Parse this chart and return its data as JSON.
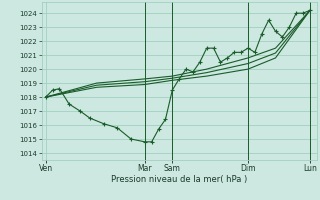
{
  "background_color": "#cce8e0",
  "grid_color": "#99ccbb",
  "line_color": "#1a5c2a",
  "xlabel": "Pression niveau de la mer( hPa )",
  "ylim": [
    1013.5,
    1024.8
  ],
  "yticks": [
    1014,
    1015,
    1016,
    1017,
    1018,
    1019,
    1020,
    1021,
    1022,
    1023,
    1024
  ],
  "xlim": [
    0,
    20
  ],
  "day_labels": [
    "Ven",
    "Mar",
    "Sam",
    "Dim",
    "Lun"
  ],
  "day_positions": [
    0.3,
    7.5,
    9.5,
    15.0,
    19.5
  ],
  "vline_positions": [
    7.5,
    9.5,
    15.0,
    19.5
  ],
  "main_line": [
    [
      0.3,
      1018.0
    ],
    [
      0.8,
      1018.5
    ],
    [
      1.3,
      1018.6
    ],
    [
      2.0,
      1017.5
    ],
    [
      2.8,
      1017.0
    ],
    [
      3.5,
      1016.5
    ],
    [
      4.5,
      1016.1
    ],
    [
      5.5,
      1015.8
    ],
    [
      6.5,
      1015.0
    ],
    [
      7.5,
      1014.8
    ],
    [
      8.0,
      1014.8
    ],
    [
      8.5,
      1015.7
    ],
    [
      9.0,
      1016.4
    ],
    [
      9.5,
      1018.5
    ],
    [
      10.0,
      1019.3
    ],
    [
      10.5,
      1020.0
    ],
    [
      11.0,
      1019.8
    ],
    [
      11.5,
      1020.5
    ],
    [
      12.0,
      1021.5
    ],
    [
      12.5,
      1021.5
    ],
    [
      13.0,
      1020.5
    ],
    [
      13.5,
      1020.8
    ],
    [
      14.0,
      1021.2
    ],
    [
      14.5,
      1021.2
    ],
    [
      15.0,
      1021.5
    ],
    [
      15.5,
      1021.2
    ],
    [
      16.0,
      1022.5
    ],
    [
      16.5,
      1023.5
    ],
    [
      17.0,
      1022.7
    ],
    [
      17.5,
      1022.3
    ],
    [
      18.0,
      1023.0
    ],
    [
      18.5,
      1024.0
    ],
    [
      19.0,
      1024.0
    ],
    [
      19.5,
      1024.2
    ]
  ],
  "upper_line": [
    [
      0.3,
      1018.0
    ],
    [
      4.0,
      1019.0
    ],
    [
      7.5,
      1019.3
    ],
    [
      9.5,
      1019.5
    ],
    [
      12.0,
      1020.0
    ],
    [
      15.0,
      1020.8
    ],
    [
      17.0,
      1021.5
    ],
    [
      19.5,
      1024.2
    ]
  ],
  "lower_line": [
    [
      0.3,
      1018.0
    ],
    [
      4.0,
      1018.7
    ],
    [
      7.5,
      1018.9
    ],
    [
      9.5,
      1019.2
    ],
    [
      12.0,
      1019.5
    ],
    [
      15.0,
      1020.0
    ],
    [
      17.0,
      1020.8
    ],
    [
      19.5,
      1024.2
    ]
  ],
  "mid_line1": [
    [
      0.3,
      1018.0
    ],
    [
      4.0,
      1018.85
    ],
    [
      7.5,
      1019.1
    ],
    [
      9.5,
      1019.35
    ],
    [
      12.0,
      1019.75
    ],
    [
      15.0,
      1020.4
    ],
    [
      17.0,
      1021.15
    ],
    [
      19.5,
      1024.2
    ]
  ]
}
